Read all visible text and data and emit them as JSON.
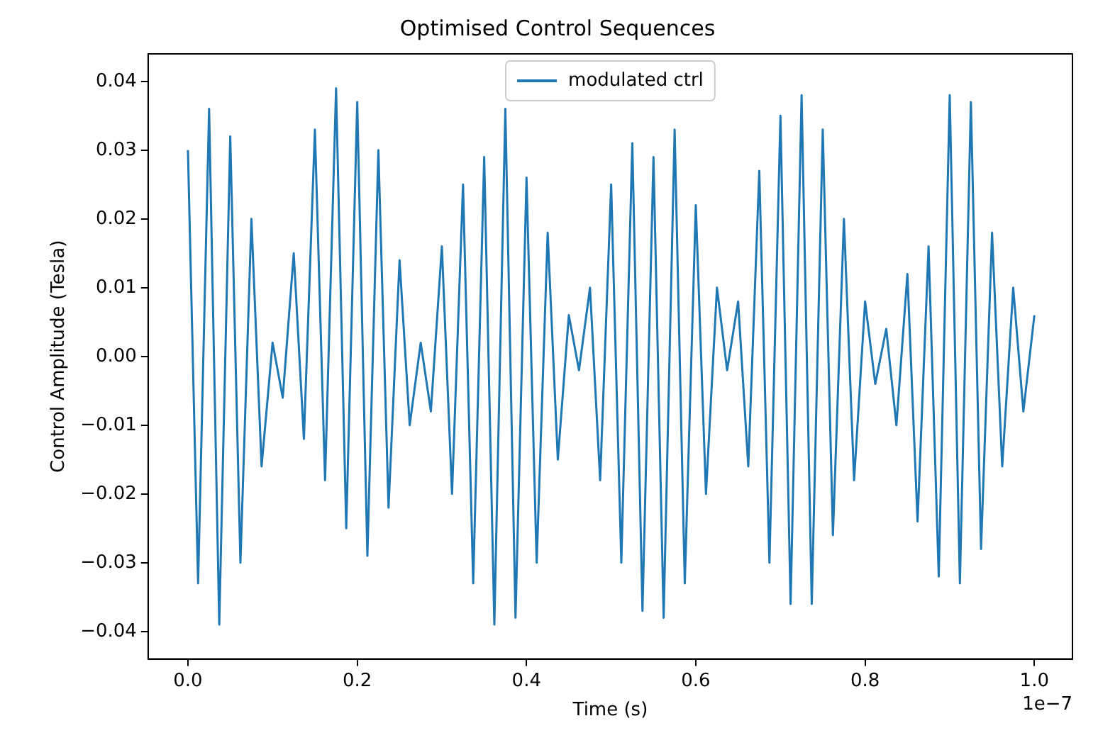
{
  "chart_data": {
    "type": "line",
    "title": "Optimised Control Sequences",
    "xlabel": "Time (s)",
    "ylabel": "Control Amplitude (Tesla)",
    "annotations": [
      "1e−7"
    ],
    "legend": "top",
    "grid": false,
    "x": [
      0,
      0.012,
      0.025,
      0.037,
      0.05,
      0.062,
      0.075,
      0.087,
      0.1,
      0.112,
      0.125,
      0.137,
      0.15,
      0.162,
      0.175,
      0.187,
      0.2,
      0.212,
      0.225,
      0.237,
      0.25,
      0.262,
      0.275,
      0.287,
      0.3,
      0.312,
      0.325,
      0.337,
      0.35,
      0.362,
      0.375,
      0.387,
      0.4,
      0.412,
      0.425,
      0.437,
      0.45,
      0.462,
      0.475,
      0.487,
      0.5,
      0.512,
      0.525,
      0.537,
      0.55,
      0.562,
      0.575,
      0.587,
      0.6,
      0.612,
      0.625,
      0.637,
      0.65,
      0.662,
      0.675,
      0.687,
      0.7,
      0.712,
      0.725,
      0.737,
      0.75,
      0.762,
      0.775,
      0.787,
      0.8,
      0.812,
      0.825,
      0.837,
      0.85,
      0.862,
      0.875,
      0.887,
      0.9,
      0.912,
      0.925,
      0.937,
      0.95,
      0.962,
      0.975,
      0.987,
      1.0
    ],
    "series": [
      {
        "name": "modulated ctrl",
        "color": "#1f77b4",
        "values": [
          0.03,
          -0.033,
          0.036,
          -0.039,
          0.032,
          -0.03,
          0.02,
          -0.016,
          0.002,
          -0.006,
          0.015,
          -0.012,
          0.033,
          -0.018,
          0.039,
          -0.025,
          0.037,
          -0.029,
          0.03,
          -0.022,
          0.014,
          -0.01,
          0.002,
          -0.008,
          0.016,
          -0.02,
          0.025,
          -0.033,
          0.029,
          -0.039,
          0.036,
          -0.038,
          0.026,
          -0.03,
          0.018,
          -0.015,
          0.006,
          -0.002,
          0.01,
          -0.018,
          0.025,
          -0.03,
          0.031,
          -0.037,
          0.029,
          -0.038,
          0.033,
          -0.033,
          0.022,
          -0.02,
          0.01,
          -0.002,
          0.008,
          -0.016,
          0.027,
          -0.03,
          0.035,
          -0.036,
          0.038,
          -0.036,
          0.033,
          -0.026,
          0.02,
          -0.018,
          0.008,
          -0.004,
          0.004,
          -0.01,
          0.012,
          -0.024,
          0.016,
          -0.032,
          0.038,
          -0.033,
          0.037,
          -0.028,
          0.018,
          -0.016,
          0.01,
          -0.008,
          0.006
        ]
      }
    ],
    "xlim": [
      -0.047,
      1.045
    ],
    "xticks": [
      {
        "value": 0,
        "label": "0.0"
      },
      0.2,
      0.4,
      0.6,
      0.8,
      {
        "value": 1,
        "label": "1.0"
      }
    ],
    "ylim": [
      -0.044,
      0.044
    ],
    "yticks": [
      {
        "value": -0.04,
        "label": "−0.04"
      },
      {
        "value": -0.03,
        "label": "−0.03"
      },
      {
        "value": -0.02,
        "label": "−0.02"
      },
      {
        "value": -0.01,
        "label": "−0.01"
      },
      {
        "value": 0,
        "label": "0.00"
      },
      {
        "value": 0.01,
        "label": "0.01"
      },
      {
        "value": 0.02,
        "label": "0.02"
      },
      {
        "value": 0.03,
        "label": "0.03"
      },
      {
        "value": 0.04,
        "label": "0.04"
      }
    ]
  }
}
